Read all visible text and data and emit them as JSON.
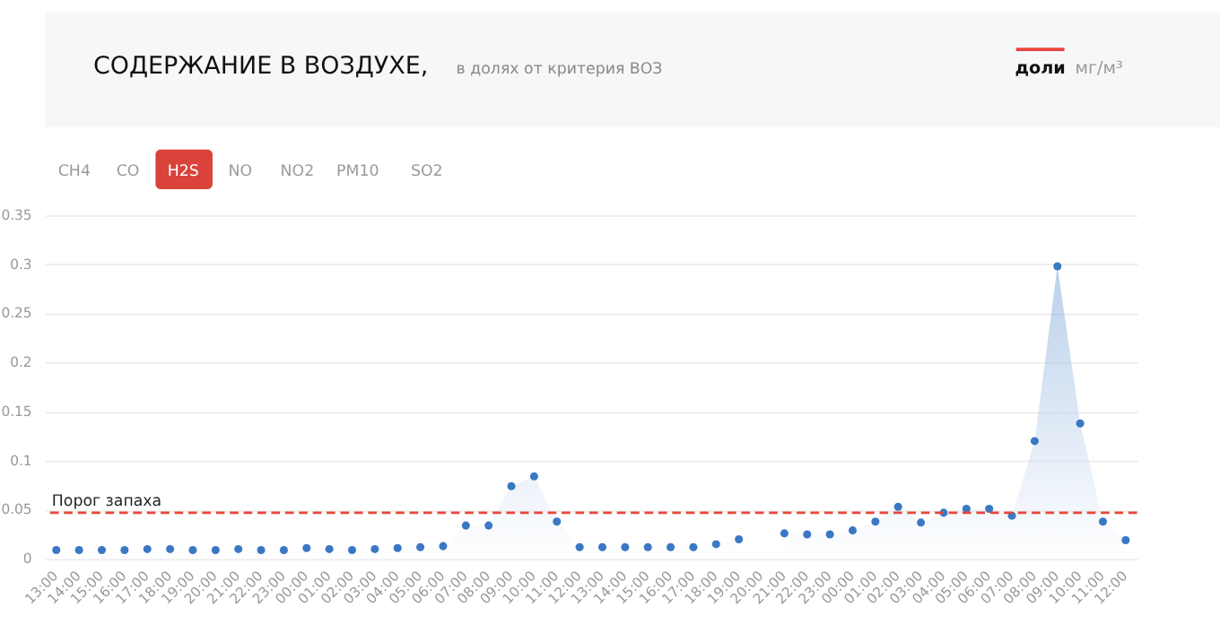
{
  "chart_data": {
    "type": "area",
    "title": "СОДЕРЖАНИЕ В ВОЗДУХЕ,",
    "subtitle": "в долях от критерия ВОЗ",
    "annotations": [
      "доли",
      "мг/м³",
      "CH4",
      "CO",
      "H2S",
      "NO",
      "NO2",
      "PM10",
      "SO2"
    ],
    "categories": [
      "13:00",
      "14:00",
      "15:00",
      "16:00",
      "17:00",
      "18:00",
      "19:00",
      "20:00",
      "21:00",
      "22:00",
      "23:00",
      "00:00",
      "01:00",
      "02:00",
      "03:00",
      "04:00",
      "05:00",
      "06:00",
      "07:00",
      "08:00",
      "09:00",
      "10:00",
      "11:00",
      "12:00",
      "13:00",
      "14:00",
      "15:00",
      "16:00",
      "17:00",
      "18:00",
      "19:00",
      "20:00",
      "21:00",
      "22:00",
      "23:00",
      "00:00",
      "01:00",
      "02:00",
      "03:00",
      "04:00",
      "05:00",
      "06:00",
      "07:00",
      "08:00",
      "09:00",
      "10:00",
      "11:00",
      "12:00"
    ],
    "series": [
      {
        "color": "#3a78c4",
        "values": [
          0.009,
          0.009,
          0.009,
          0.009,
          0.01,
          0.01,
          0.009,
          0.009,
          0.01,
          0.009,
          0.009,
          0.011,
          0.01,
          0.009,
          0.01,
          0.011,
          0.012,
          0.013,
          0.034,
          0.034,
          0.074,
          0.084,
          0.038,
          0.012,
          0.012,
          0.012,
          0.012,
          0.012,
          0.012,
          0.015,
          0.02,
          null,
          0.026,
          0.025,
          0.025,
          0.029,
          0.038,
          0.053,
          0.037,
          0.047,
          0.051,
          0.051,
          0.044,
          0.12,
          0.298,
          0.138,
          0.038,
          0.019
        ]
      }
    ],
    "ylim": [
      0,
      0.35
    ],
    "yticks": [
      0,
      0.05,
      0.1,
      0.15,
      0.2,
      0.25,
      0.3,
      0.35
    ],
    "grid": "y",
    "marker": "circle",
    "ref_lines": [
      {
        "axis": "y",
        "value": 0.047,
        "label": "Порог запаха",
        "color": "#e8463a",
        "line_style": "dashed"
      }
    ]
  }
}
